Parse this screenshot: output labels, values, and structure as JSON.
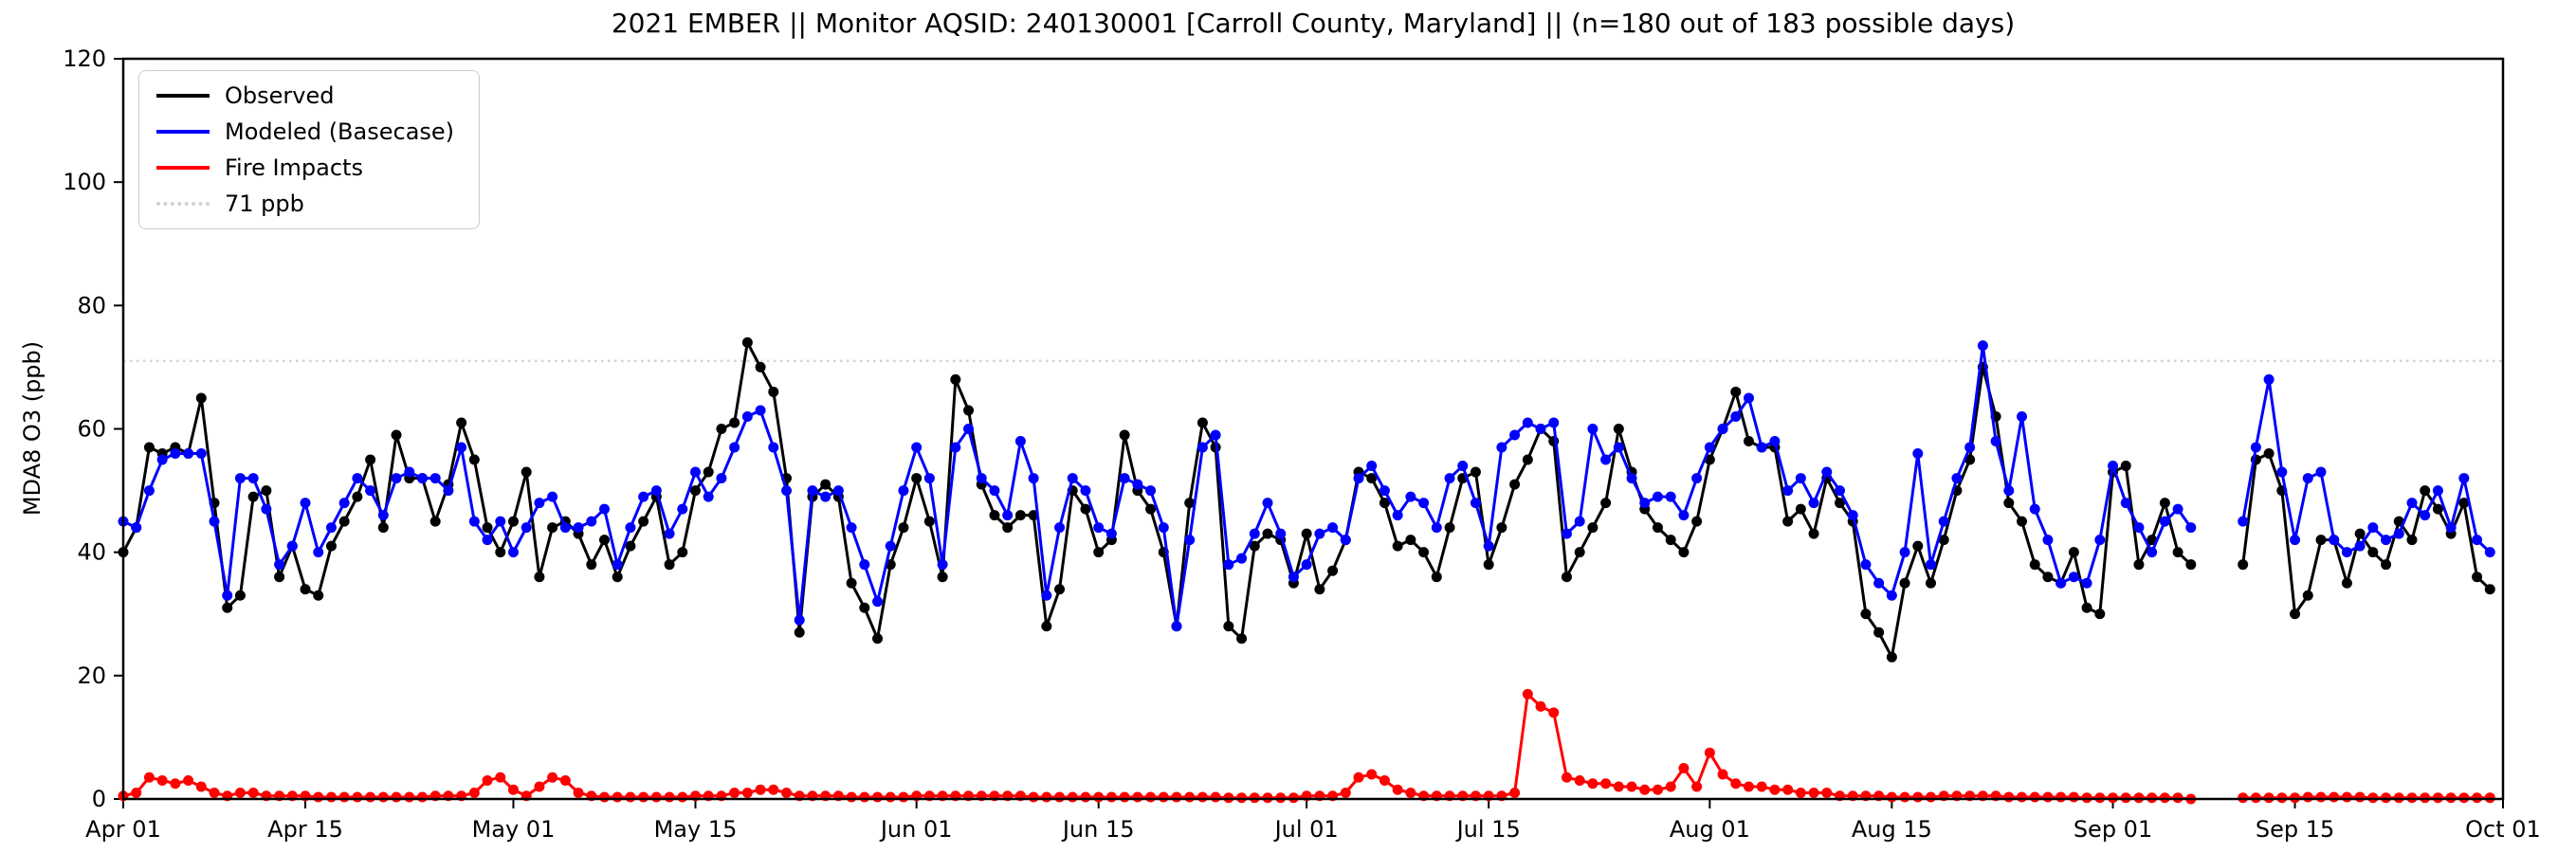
{
  "title": "2021 EMBER || Monitor AQSID: 240130001 [Carroll County, Maryland] || (n=180 out of 183 possible days)",
  "chart_data": {
    "type": "line",
    "title": "2021 EMBER || Monitor AQSID: 240130001 [Carroll County, Maryland] || (n=180 out of 183 possible days)",
    "xlabel": "",
    "ylabel": "MDA8 O3 (ppb)",
    "ylim": [
      0,
      120
    ],
    "x_range": [
      0,
      183
    ],
    "x_unit": "days since Apr 01, 2021 (daily values, Apr 01 - Sep 30; 3 missing days)",
    "grid": false,
    "legend_position": "upper-left",
    "y_ticks": [
      0,
      20,
      40,
      60,
      80,
      100,
      120
    ],
    "x_ticks": [
      {
        "day": 0,
        "label": "Apr 01"
      },
      {
        "day": 14,
        "label": "Apr 15"
      },
      {
        "day": 30,
        "label": "May 01"
      },
      {
        "day": 44,
        "label": "May 15"
      },
      {
        "day": 61,
        "label": "Jun 01"
      },
      {
        "day": 75,
        "label": "Jun 15"
      },
      {
        "day": 91,
        "label": "Jul 01"
      },
      {
        "day": 105,
        "label": "Jul 15"
      },
      {
        "day": 122,
        "label": "Aug 01"
      },
      {
        "day": 136,
        "label": "Aug 15"
      },
      {
        "day": 153,
        "label": "Sep 01"
      },
      {
        "day": 167,
        "label": "Sep 15"
      },
      {
        "day": 183,
        "label": "Oct 01"
      }
    ],
    "reference_line": {
      "value": 71,
      "label": "71 ppb",
      "color": "#d3d3d3",
      "style": "dotted"
    },
    "series": [
      {
        "name": "Observed",
        "color": "#000000",
        "values": [
          40,
          44,
          57,
          56,
          57,
          56,
          65,
          48,
          31,
          33,
          49,
          50,
          36,
          41,
          34,
          33,
          41,
          45,
          49,
          55,
          44,
          59,
          52,
          52,
          45,
          51,
          61,
          55,
          44,
          40,
          45,
          53,
          36,
          44,
          45,
          43,
          38,
          42,
          36,
          41,
          45,
          49,
          38,
          40,
          50,
          53,
          60,
          61,
          74,
          70,
          66,
          52,
          27,
          49,
          51,
          49,
          35,
          31,
          26,
          38,
          44,
          52,
          45,
          36,
          68,
          63,
          51,
          46,
          44,
          46,
          46,
          28,
          34,
          50,
          47,
          40,
          42,
          59,
          50,
          47,
          40,
          28,
          48,
          61,
          57,
          28,
          26,
          41,
          43,
          42,
          35,
          43,
          34,
          37,
          42,
          53,
          52,
          48,
          41,
          42,
          40,
          36,
          44,
          52,
          53,
          38,
          44,
          51,
          55,
          60,
          58,
          36,
          40,
          44,
          48,
          60,
          53,
          47,
          44,
          42,
          40,
          45,
          55,
          60,
          66,
          58,
          57,
          57,
          45,
          47,
          43,
          52,
          48,
          45,
          30,
          27,
          23,
          35,
          41,
          35,
          42,
          50,
          55,
          70,
          62,
          48,
          45,
          38,
          36,
          35,
          40,
          31,
          30,
          53,
          54,
          38,
          42,
          48,
          40,
          38,
          null,
          null,
          null,
          38,
          55,
          56,
          50,
          30,
          33,
          42,
          42,
          35,
          43,
          40,
          38,
          45,
          42,
          50,
          47,
          43,
          48,
          36,
          34
        ]
      },
      {
        "name": "Modeled (Basecase)",
        "color": "#0000ff",
        "values": [
          45,
          44,
          50,
          55,
          56,
          56,
          56,
          45,
          33,
          52,
          52,
          47,
          38,
          41,
          48,
          40,
          44,
          48,
          52,
          50,
          46,
          52,
          53,
          52,
          52,
          50,
          57,
          45,
          42,
          45,
          40,
          44,
          48,
          49,
          44,
          44,
          45,
          47,
          38,
          44,
          49,
          50,
          43,
          47,
          53,
          49,
          52,
          57,
          62,
          63,
          57,
          50,
          29,
          50,
          49,
          50,
          44,
          38,
          32,
          41,
          50,
          57,
          52,
          38,
          57,
          60,
          52,
          50,
          46,
          58,
          52,
          33,
          44,
          52,
          50,
          44,
          43,
          52,
          51,
          50,
          44,
          28,
          42,
          57,
          59,
          38,
          39,
          43,
          48,
          43,
          36,
          38,
          43,
          44,
          42,
          52,
          54,
          50,
          46,
          49,
          48,
          44,
          52,
          54,
          48,
          41,
          57,
          59,
          61,
          60,
          61,
          43,
          45,
          60,
          55,
          57,
          52,
          48,
          49,
          49,
          46,
          52,
          57,
          60,
          62,
          65,
          57,
          58,
          50,
          52,
          48,
          53,
          50,
          46,
          38,
          35,
          33,
          40,
          56,
          38,
          45,
          52,
          57,
          73.5,
          58,
          50,
          62,
          47,
          42,
          35,
          36,
          35,
          42,
          54,
          48,
          44,
          40,
          45,
          47,
          44,
          null,
          null,
          null,
          45,
          57,
          68,
          53,
          42,
          52,
          53,
          42,
          40,
          41,
          44,
          42,
          43,
          48,
          46,
          50,
          44,
          52,
          42,
          40
        ]
      },
      {
        "name": "Fire Impacts",
        "color": "#ff0000",
        "values": [
          0.5,
          1,
          3.5,
          3,
          2.5,
          3,
          2,
          1,
          0.5,
          1,
          1,
          0.5,
          0.5,
          0.5,
          0.5,
          0.3,
          0.3,
          0.3,
          0.3,
          0.3,
          0.3,
          0.3,
          0.3,
          0.3,
          0.5,
          0.5,
          0.5,
          1,
          3,
          3.5,
          1.5,
          0.5,
          2,
          3.5,
          3,
          1,
          0.5,
          0.3,
          0.3,
          0.3,
          0.3,
          0.3,
          0.3,
          0.3,
          0.5,
          0.5,
          0.5,
          1,
          1,
          1.5,
          1.5,
          1,
          0.5,
          0.5,
          0.5,
          0.5,
          0.3,
          0.3,
          0.3,
          0.3,
          0.3,
          0.5,
          0.5,
          0.5,
          0.5,
          0.5,
          0.5,
          0.5,
          0.5,
          0.5,
          0.3,
          0.3,
          0.3,
          0.3,
          0.3,
          0.3,
          0.3,
          0.3,
          0.3,
          0.3,
          0.3,
          0.3,
          0.3,
          0.3,
          0.3,
          0.2,
          0.2,
          0.2,
          0.2,
          0.2,
          0.2,
          0.5,
          0.5,
          0.5,
          1,
          3.5,
          4,
          3,
          1.5,
          1,
          0.5,
          0.5,
          0.5,
          0.5,
          0.5,
          0.5,
          0.5,
          1,
          17,
          15,
          14,
          3.5,
          3,
          2.5,
          2.5,
          2,
          2,
          1.5,
          1.5,
          2,
          5,
          2,
          7.5,
          4,
          2.5,
          2,
          2,
          1.5,
          1.5,
          1,
          1,
          1,
          0.5,
          0.5,
          0.5,
          0.5,
          0.3,
          0.3,
          0.3,
          0.3,
          0.5,
          0.5,
          0.5,
          0.5,
          0.5,
          0.3,
          0.3,
          0.3,
          0.3,
          0.3,
          0.3,
          0.2,
          0.2,
          0.2,
          0.2,
          0.2,
          0.2,
          0.2,
          0.2,
          0,
          null,
          null,
          null,
          0.2,
          0.2,
          0.2,
          0.2,
          0.2,
          0.3,
          0.3,
          0.3,
          0.3,
          0.3,
          0.2,
          0.2,
          0.2,
          0.2,
          0.2,
          0.2,
          0.2,
          0.2,
          0.2,
          0.2
        ]
      }
    ]
  }
}
